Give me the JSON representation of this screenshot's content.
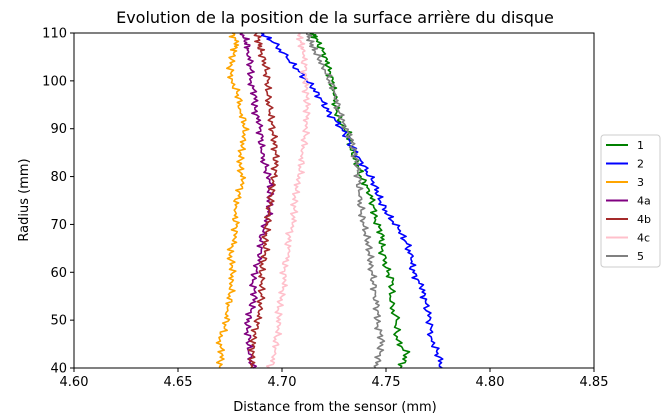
{
  "chart_data": {
    "type": "line",
    "title": "Evolution de la position de la surface arrière du disque",
    "xlabel": "Distance from the sensor (mm)",
    "ylabel": "Radius (mm)",
    "xlim": [
      4.6,
      4.85
    ],
    "ylim": [
      40,
      110
    ],
    "xticks": [
      "4.60",
      "4.65",
      "4.70",
      "4.75",
      "4.80",
      "4.85"
    ],
    "yticks": [
      "40",
      "50",
      "60",
      "70",
      "80",
      "90",
      "100",
      "110"
    ],
    "grid": false,
    "legend_position": "right",
    "series": [
      {
        "name": "1",
        "color": "#008000",
        "points": [
          [
            4.757,
            40
          ],
          [
            4.76,
            43
          ],
          [
            4.755,
            46
          ],
          [
            4.755,
            50
          ],
          [
            4.752,
            54
          ],
          [
            4.753,
            58
          ],
          [
            4.75,
            61
          ],
          [
            4.748,
            65
          ],
          [
            4.748,
            68
          ],
          [
            4.745,
            71
          ],
          [
            4.744,
            74
          ],
          [
            4.742,
            77
          ],
          [
            4.738,
            80
          ],
          [
            4.736,
            83
          ],
          [
            4.733,
            86
          ],
          [
            4.732,
            89
          ],
          [
            4.728,
            91
          ],
          [
            4.726,
            94
          ],
          [
            4.725,
            97
          ],
          [
            4.724,
            100
          ],
          [
            4.722,
            103
          ],
          [
            4.72,
            106
          ],
          [
            4.716,
            109
          ],
          [
            4.715,
            110
          ]
        ]
      },
      {
        "name": "2",
        "color": "#0000ff",
        "points": [
          [
            4.777,
            40
          ],
          [
            4.775,
            43
          ],
          [
            4.772,
            46
          ],
          [
            4.771,
            50
          ],
          [
            4.769,
            54
          ],
          [
            4.767,
            57
          ],
          [
            4.763,
            60
          ],
          [
            4.762,
            63
          ],
          [
            4.76,
            66
          ],
          [
            4.756,
            69
          ],
          [
            4.751,
            72
          ],
          [
            4.747,
            75
          ],
          [
            4.745,
            78
          ],
          [
            4.741,
            81
          ],
          [
            4.737,
            84
          ],
          [
            4.733,
            87
          ],
          [
            4.729,
            90
          ],
          [
            4.723,
            93
          ],
          [
            4.719,
            96
          ],
          [
            4.714,
            99
          ],
          [
            4.708,
            102
          ],
          [
            4.702,
            105
          ],
          [
            4.696,
            108
          ],
          [
            4.69,
            110
          ]
        ]
      },
      {
        "name": "3",
        "color": "#ffa500",
        "points": [
          [
            4.67,
            40
          ],
          [
            4.671,
            43
          ],
          [
            4.67,
            46
          ],
          [
            4.673,
            49
          ],
          [
            4.674,
            52
          ],
          [
            4.675,
            55
          ],
          [
            4.676,
            58
          ],
          [
            4.676,
            61
          ],
          [
            4.675,
            64
          ],
          [
            4.677,
            67
          ],
          [
            4.678,
            70
          ],
          [
            4.677,
            73
          ],
          [
            4.679,
            76
          ],
          [
            4.681,
            79
          ],
          [
            4.68,
            82
          ],
          [
            4.68,
            85
          ],
          [
            4.682,
            88
          ],
          [
            4.682,
            91
          ],
          [
            4.68,
            94
          ],
          [
            4.679,
            97
          ],
          [
            4.676,
            100
          ],
          [
            4.675,
            103
          ],
          [
            4.677,
            106
          ],
          [
            4.678,
            108
          ],
          [
            4.676,
            110
          ]
        ]
      },
      {
        "name": "4a",
        "color": "#800080",
        "points": [
          [
            4.686,
            40
          ],
          [
            4.684,
            43
          ],
          [
            4.684,
            46
          ],
          [
            4.683,
            49
          ],
          [
            4.685,
            52
          ],
          [
            4.687,
            55
          ],
          [
            4.686,
            58
          ],
          [
            4.688,
            61
          ],
          [
            4.69,
            64
          ],
          [
            4.69,
            67
          ],
          [
            4.692,
            70
          ],
          [
            4.694,
            73
          ],
          [
            4.694,
            76
          ],
          [
            4.694,
            79
          ],
          [
            4.692,
            82
          ],
          [
            4.69,
            85
          ],
          [
            4.69,
            88
          ],
          [
            4.689,
            91
          ],
          [
            4.687,
            94
          ],
          [
            4.687,
            97
          ],
          [
            4.685,
            100
          ],
          [
            4.685,
            103
          ],
          [
            4.684,
            106
          ],
          [
            4.683,
            108
          ],
          [
            4.681,
            110
          ]
        ]
      },
      {
        "name": "4b",
        "color": "#a52a2a",
        "points": [
          [
            4.685,
            40
          ],
          [
            4.686,
            43
          ],
          [
            4.686,
            46
          ],
          [
            4.688,
            49
          ],
          [
            4.689,
            52
          ],
          [
            4.69,
            55
          ],
          [
            4.69,
            58
          ],
          [
            4.69,
            61
          ],
          [
            4.692,
            64
          ],
          [
            4.692,
            67
          ],
          [
            4.693,
            70
          ],
          [
            4.694,
            73
          ],
          [
            4.695,
            76
          ],
          [
            4.696,
            79
          ],
          [
            4.697,
            82
          ],
          [
            4.697,
            85
          ],
          [
            4.696,
            88
          ],
          [
            4.695,
            91
          ],
          [
            4.694,
            94
          ],
          [
            4.693,
            97
          ],
          [
            4.693,
            100
          ],
          [
            4.692,
            103
          ],
          [
            4.69,
            106
          ],
          [
            4.689,
            108
          ],
          [
            4.688,
            110
          ]
        ]
      },
      {
        "name": "4c",
        "color": "#ffc0cb",
        "points": [
          [
            4.694,
            40
          ],
          [
            4.697,
            43
          ],
          [
            4.697,
            46
          ],
          [
            4.699,
            49
          ],
          [
            4.698,
            52
          ],
          [
            4.7,
            55
          ],
          [
            4.701,
            58
          ],
          [
            4.701,
            61
          ],
          [
            4.703,
            64
          ],
          [
            4.703,
            67
          ],
          [
            4.705,
            70
          ],
          [
            4.706,
            73
          ],
          [
            4.706,
            76
          ],
          [
            4.708,
            79
          ],
          [
            4.709,
            82
          ],
          [
            4.71,
            85
          ],
          [
            4.711,
            88
          ],
          [
            4.712,
            91
          ],
          [
            4.712,
            94
          ],
          [
            4.712,
            97
          ],
          [
            4.711,
            100
          ],
          [
            4.711,
            103
          ],
          [
            4.71,
            106
          ],
          [
            4.709,
            108
          ],
          [
            4.708,
            110
          ]
        ]
      },
      {
        "name": "5",
        "color": "#808080",
        "points": [
          [
            4.745,
            40
          ],
          [
            4.747,
            43
          ],
          [
            4.748,
            46
          ],
          [
            4.746,
            49
          ],
          [
            4.746,
            52
          ],
          [
            4.745,
            55
          ],
          [
            4.744,
            58
          ],
          [
            4.743,
            61
          ],
          [
            4.742,
            64
          ],
          [
            4.741,
            67
          ],
          [
            4.739,
            70
          ],
          [
            4.738,
            73
          ],
          [
            4.737,
            76
          ],
          [
            4.737,
            79
          ],
          [
            4.736,
            82
          ],
          [
            4.735,
            85
          ],
          [
            4.733,
            88
          ],
          [
            4.73,
            91
          ],
          [
            4.727,
            94
          ],
          [
            4.726,
            97
          ],
          [
            4.723,
            100
          ],
          [
            4.72,
            103
          ],
          [
            4.716,
            106
          ],
          [
            4.714,
            108
          ],
          [
            4.712,
            110
          ]
        ]
      }
    ]
  }
}
